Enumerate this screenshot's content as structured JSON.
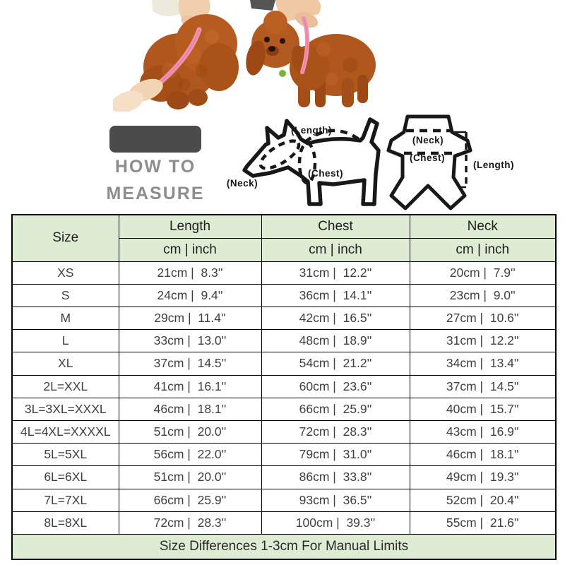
{
  "colors": {
    "header_green": "#dfecd4",
    "table_border": "#000000",
    "table_text": "#3f3f3f",
    "howto_gray": "#8d8d8d",
    "badge_dark": "#4b4b4b",
    "tape_pink": "#f193b0",
    "dog_brown": "#b2591f"
  },
  "how_to": {
    "line1": "HOW TO",
    "line2": "MEASURE"
  },
  "dog_diagram": {
    "length_label": "(Length)",
    "chest_label": "(Chest)",
    "neck_label": "(Neck)"
  },
  "garment_diagram": {
    "neck_label": "(Neck)",
    "chest_label": "(Chest)",
    "length_label": "(Length)"
  },
  "table": {
    "size_header": "Size",
    "columns": [
      {
        "label": "Length",
        "sub": "cm | inch"
      },
      {
        "label": "Chest",
        "sub": "cm | inch"
      },
      {
        "label": "Neck",
        "sub": "cm | inch"
      }
    ],
    "rows": [
      {
        "size": "XS",
        "values": [
          "21cm |  8.3''",
          "31cm |  12.2''",
          "20cm |  7.9''"
        ]
      },
      {
        "size": "S",
        "values": [
          "24cm |  9.4''",
          "36cm |  14.1''",
          "23cm |  9.0''"
        ]
      },
      {
        "size": "M",
        "values": [
          "29cm |  11.4''",
          "42cm |  16.5''",
          "27cm |  10.6''"
        ]
      },
      {
        "size": "L",
        "values": [
          "33cm |  13.0''",
          "48cm |  18.9''",
          "31cm |  12.2''"
        ]
      },
      {
        "size": "XL",
        "values": [
          "37cm |  14.5''",
          "54cm |  21.2''",
          "34cm |  13.4''"
        ]
      },
      {
        "size": "2L=XXL",
        "values": [
          "41cm |  16.1''",
          "60cm |  23.6''",
          "37cm |  14.5''"
        ]
      },
      {
        "size": "3L=3XL=XXXL",
        "values": [
          "46cm |  18.1''",
          "66cm |  25.9''",
          "40cm |  15.7''"
        ]
      },
      {
        "size": "4L=4XL=XXXXL",
        "values": [
          "51cm |  20.0''",
          "72cm |  28.3''",
          "43cm |  16.9''"
        ]
      },
      {
        "size": "5L=5XL",
        "values": [
          "56cm |  22.0''",
          "79cm |  31.0''",
          "46cm |  18.1''"
        ]
      },
      {
        "size": "6L=6XL",
        "values": [
          "51cm |  20.0''",
          "86cm |  33.8''",
          "49cm |  19.3''"
        ]
      },
      {
        "size": "7L=7XL",
        "values": [
          "66cm |  25.9''",
          "93cm |  36.5''",
          "52cm |  20.4''"
        ]
      },
      {
        "size": "8L=8XL",
        "values": [
          "72cm |  28.3''",
          "100cm |  39.3''",
          "55cm |  21.6''"
        ]
      }
    ],
    "footer": "Size Differences 1-3cm For Manual Limits"
  },
  "chart_data": {
    "type": "table",
    "columns": [
      "Size",
      "Length cm",
      "Length inch",
      "Chest cm",
      "Chest inch",
      "Neck cm",
      "Neck inch"
    ],
    "rows": [
      [
        "XS",
        21,
        8.3,
        31,
        12.2,
        20,
        7.9
      ],
      [
        "S",
        24,
        9.4,
        36,
        14.1,
        23,
        9.0
      ],
      [
        "M",
        29,
        11.4,
        42,
        16.5,
        27,
        10.6
      ],
      [
        "L",
        33,
        13.0,
        48,
        18.9,
        31,
        12.2
      ],
      [
        "XL",
        37,
        14.5,
        54,
        21.2,
        34,
        13.4
      ],
      [
        "2L=XXL",
        41,
        16.1,
        60,
        23.6,
        37,
        14.5
      ],
      [
        "3L=3XL=XXXL",
        46,
        18.1,
        66,
        25.9,
        40,
        15.7
      ],
      [
        "4L=4XL=XXXXL",
        51,
        20.0,
        72,
        28.3,
        43,
        16.9
      ],
      [
        "5L=5XL",
        56,
        22.0,
        79,
        31.0,
        46,
        18.1
      ],
      [
        "6L=6XL",
        51,
        20.0,
        86,
        33.8,
        49,
        19.3
      ],
      [
        "7L=7XL",
        66,
        25.9,
        93,
        36.5,
        52,
        20.4
      ],
      [
        "8L=8XL",
        72,
        28.3,
        100,
        39.3,
        55,
        21.6
      ]
    ],
    "note": "Size Differences 1-3cm For Manual Limits"
  }
}
